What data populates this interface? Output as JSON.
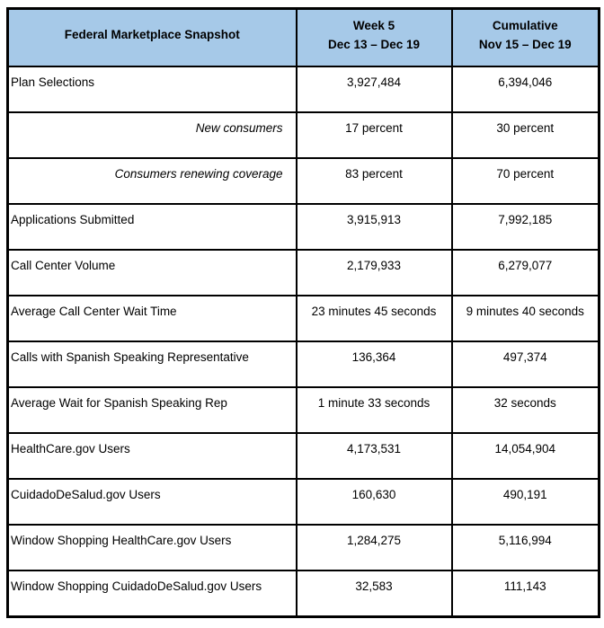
{
  "table": {
    "title": "Federal Marketplace Snapshot",
    "header": {
      "label_col": "Federal Marketplace Snapshot",
      "week_col_line1": "Week 5",
      "week_col_line2": "Dec 13 – Dec 19",
      "cumulative_col_line1": "Cumulative",
      "cumulative_col_line2": "Nov 15 – Dec 19"
    },
    "rows": [
      {
        "label": "Plan Selections",
        "week": "3,927,484",
        "cumulative": "6,394,046",
        "indent": false
      },
      {
        "label": "New consumers",
        "week": "17 percent",
        "cumulative": "30 percent",
        "indent": true
      },
      {
        "label": "Consumers renewing coverage",
        "week": "83 percent",
        "cumulative": "70 percent",
        "indent": true
      },
      {
        "label": "Applications Submitted",
        "week": "3,915,913",
        "cumulative": "7,992,185",
        "indent": false
      },
      {
        "label": "Call Center Volume",
        "week": "2,179,933",
        "cumulative": "6,279,077",
        "indent": false
      },
      {
        "label": "Average Call Center Wait Time",
        "week": "23 minutes 45 seconds",
        "cumulative": "9 minutes 40 seconds",
        "indent": false
      },
      {
        "label": "Calls with Spanish Speaking Representative",
        "week": "136,364",
        "cumulative": "497,374",
        "indent": false
      },
      {
        "label": "Average Wait for Spanish Speaking Rep",
        "week": "1 minute 33 seconds",
        "cumulative": "32 seconds",
        "indent": false
      },
      {
        "label": "HealthCare.gov Users",
        "week": "4,173,531",
        "cumulative": "14,054,904",
        "indent": false
      },
      {
        "label": "CuidadoDeSalud.gov Users",
        "week": "160,630",
        "cumulative": "490,191",
        "indent": false
      },
      {
        "label": "Window Shopping HealthCare.gov Users",
        "week": "1,284,275",
        "cumulative": "5,116,994",
        "indent": false
      },
      {
        "label": "Window Shopping CuidadoDeSalud.gov Users",
        "week": "32,583",
        "cumulative": "111,143",
        "indent": false
      }
    ],
    "colors": {
      "header_bg": "#a6c9e8",
      "border": "#000000",
      "text": "#000000"
    }
  }
}
